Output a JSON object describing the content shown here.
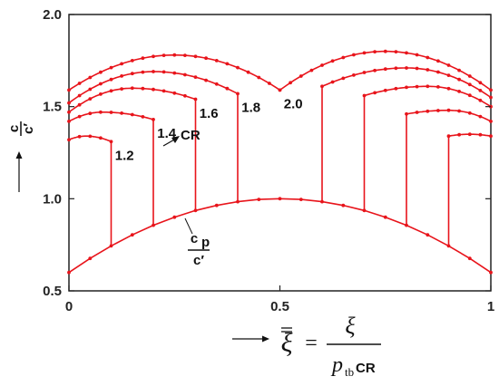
{
  "chart_data": {
    "type": "line",
    "xlim": [
      0,
      1
    ],
    "ylim": [
      0.5,
      2.0
    ],
    "grid": false,
    "x_ticks": [
      {
        "value": 0,
        "label": "0"
      },
      {
        "value": 0.5,
        "label": "0.5"
      },
      {
        "value": 1,
        "label": "1"
      }
    ],
    "y_ticks": [
      {
        "value": 0.5,
        "label": "0.5"
      },
      {
        "value": 1.0,
        "label": "1.0"
      },
      {
        "value": 1.5,
        "label": "1.5"
      },
      {
        "value": 2.0,
        "label": "2.0"
      }
    ],
    "ylabel": {
      "numerator": "c",
      "denominator": "c′"
    },
    "xlabel": {
      "lhs": "ξ",
      "equals": "=",
      "numerator": "ξ",
      "denominator_p": "p",
      "denominator_sub": "tb",
      "denominator_cr": "CR"
    },
    "cp_label": {
      "numerator": "c",
      "numerator_sub": "p",
      "denominator": "c′"
    },
    "cr_arrow_label": "CR",
    "base_curve": {
      "name": "cp/c'",
      "x": [
        0,
        0.05,
        0.1,
        0.15,
        0.2,
        0.25,
        0.3,
        0.35,
        0.4,
        0.45,
        0.5,
        0.55,
        0.6,
        0.65,
        0.7,
        0.75,
        0.8,
        0.85,
        0.9,
        0.95,
        1.0
      ],
      "y": [
        0.6,
        0.676,
        0.744,
        0.804,
        0.856,
        0.9,
        0.936,
        0.964,
        0.984,
        0.996,
        1.0,
        0.996,
        0.984,
        0.964,
        0.936,
        0.9,
        0.856,
        0.804,
        0.744,
        0.676,
        0.6
      ]
    },
    "series": [
      {
        "label": "1.2",
        "x0": 0,
        "x1": 0.1,
        "y0": 1.32,
        "ypeak": 1.34,
        "xpeak": 0.04,
        "yend": 1.31,
        "xdrop": 0.1,
        "ybase": 0.744
      },
      {
        "label": "1.4",
        "x0": 0,
        "x1": 0.2,
        "y0": 1.42,
        "ypeak": 1.47,
        "xpeak": 0.08,
        "yend": 1.43,
        "xdrop": 0.2,
        "ybase": 0.856
      },
      {
        "label": "1.6",
        "x0": 0,
        "x1": 0.3,
        "y0": 1.47,
        "ypeak": 1.6,
        "xpeak": 0.15,
        "yend": 1.54,
        "xdrop": 0.3,
        "ybase": 0.936
      },
      {
        "label": "1.8",
        "x0": 0,
        "x1": 0.4,
        "y0": 1.52,
        "ypeak": 1.69,
        "xpeak": 0.2,
        "yend": 1.57,
        "xdrop": 0.4,
        "ybase": 0.984
      },
      {
        "label": "2.0",
        "x0": 0,
        "x1": 0.5,
        "y0": 1.59,
        "ypeak": 1.78,
        "xpeak": 0.25,
        "yend": 1.59,
        "xdrop": null,
        "ybase": null
      },
      {
        "label": "",
        "x0": 0.5,
        "x1": 1.0,
        "y0": 1.59,
        "ypeak": 1.8,
        "xpeak": 0.75,
        "yend": 1.59,
        "xdrop": null,
        "ybase": null
      },
      {
        "label": "",
        "x0": 0.6,
        "x1": 1.0,
        "y0": 1.61,
        "ypeak": 1.71,
        "xpeak": 0.8,
        "yend": 1.55,
        "xdrop": 0.6,
        "ybase": 0.984
      },
      {
        "label": "",
        "x0": 0.7,
        "x1": 1.0,
        "y0": 1.56,
        "ypeak": 1.61,
        "xpeak": 0.85,
        "yend": 1.5,
        "xdrop": 0.7,
        "ybase": 0.936
      },
      {
        "label": "",
        "x0": 0.8,
        "x1": 1.0,
        "y0": 1.46,
        "ypeak": 1.48,
        "xpeak": 0.9,
        "yend": 1.42,
        "xdrop": 0.8,
        "ybase": 0.856
      },
      {
        "label": "",
        "x0": 0.9,
        "x1": 1.0,
        "y0": 1.34,
        "ypeak": 1.35,
        "xpeak": 0.95,
        "yend": 1.34,
        "xdrop": 0.9,
        "ybase": 0.744
      }
    ],
    "line_color": "#e8141b"
  }
}
